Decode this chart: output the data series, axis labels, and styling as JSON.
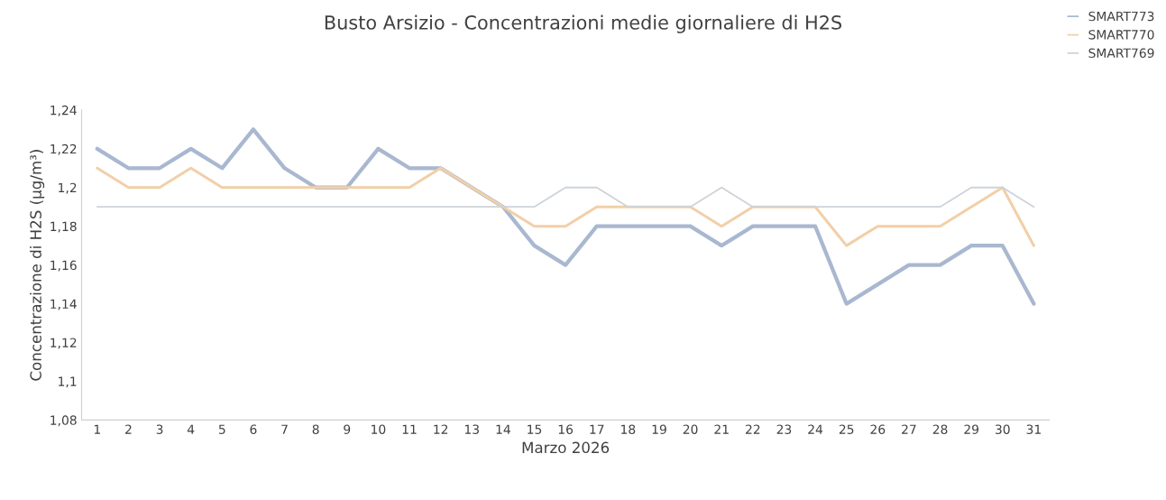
{
  "chart_data": {
    "type": "line",
    "title": "Busto Arsizio - Concentrazioni medie giornaliere di H2S",
    "xlabel": "Marzo 2026",
    "ylabel": "Concentrazione di H2S (µg/m³)",
    "categories": [
      "1",
      "2",
      "3",
      "4",
      "5",
      "6",
      "7",
      "8",
      "9",
      "10",
      "11",
      "12",
      "13",
      "14",
      "15",
      "16",
      "17",
      "18",
      "19",
      "20",
      "21",
      "22",
      "23",
      "24",
      "25",
      "26",
      "27",
      "28",
      "29",
      "30",
      "31"
    ],
    "series": [
      {
        "name": "SMART773",
        "color": "#a9b8d0",
        "values": [
          1.22,
          1.21,
          1.21,
          1.22,
          1.21,
          1.23,
          1.21,
          1.2,
          1.2,
          1.22,
          1.21,
          1.21,
          1.2,
          1.19,
          1.17,
          1.16,
          1.18,
          1.18,
          1.18,
          1.18,
          1.17,
          1.18,
          1.18,
          1.18,
          1.14,
          1.15,
          1.16,
          1.16,
          1.17,
          1.17,
          1.14
        ]
      },
      {
        "name": "SMART770",
        "color": "#f2cfa8",
        "values": [
          1.21,
          1.2,
          1.2,
          1.21,
          1.2,
          1.2,
          1.2,
          1.2,
          1.2,
          1.2,
          1.2,
          1.21,
          1.2,
          1.19,
          1.18,
          1.18,
          1.19,
          1.19,
          1.19,
          1.19,
          1.18,
          1.19,
          1.19,
          1.19,
          1.17,
          1.18,
          1.18,
          1.18,
          1.19,
          1.2,
          1.17
        ]
      },
      {
        "name": "SMART769",
        "color": "#cdd3da",
        "values": [
          1.19,
          1.19,
          1.19,
          1.19,
          1.19,
          1.19,
          1.19,
          1.19,
          1.19,
          1.19,
          1.19,
          1.19,
          1.19,
          1.19,
          1.19,
          1.2,
          1.2,
          1.19,
          1.19,
          1.19,
          1.2,
          1.19,
          1.19,
          1.19,
          1.19,
          1.19,
          1.19,
          1.19,
          1.2,
          1.2,
          1.19
        ]
      }
    ],
    "ylim": [
      1.08,
      1.24
    ],
    "yticks": [
      {
        "value": 1.08,
        "label": "1,08"
      },
      {
        "value": 1.1,
        "label": "1,1"
      },
      {
        "value": 1.12,
        "label": "1,12"
      },
      {
        "value": 1.14,
        "label": "1,14"
      },
      {
        "value": 1.16,
        "label": "1,16"
      },
      {
        "value": 1.18,
        "label": "1,18"
      },
      {
        "value": 1.2,
        "label": "1,2"
      },
      {
        "value": 1.22,
        "label": "1,22"
      },
      {
        "value": 1.24,
        "label": "1,24"
      }
    ],
    "grid": false,
    "legend": "top right",
    "marker": "none",
    "line_style": "solid"
  }
}
